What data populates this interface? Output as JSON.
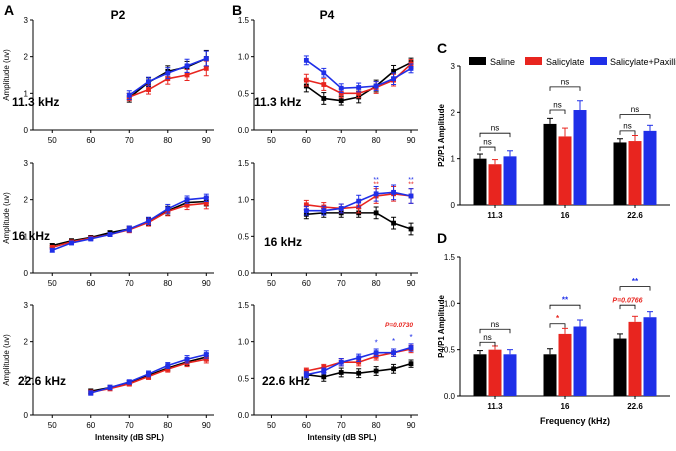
{
  "colors": {
    "saline": "#000000",
    "salicylate": "#e8251f",
    "paxilline": "#1f2fe8",
    "axis": "#000000"
  },
  "legend": {
    "saline": "Saline",
    "salicylate": "Salicylate",
    "paxilline": "Salicylate+Paxilline"
  },
  "panel_letters": {
    "A": "A",
    "B": "B",
    "C": "C",
    "D": "D"
  },
  "column_titles": {
    "p2": "P2",
    "p4": "P4"
  },
  "shared": {
    "xlabel": "Intensity (dB SPL)",
    "ylabel": "Amplitude (uv)",
    "xticks": [
      50,
      60,
      70,
      80,
      90
    ],
    "yticks": [
      0,
      1,
      2,
      3
    ]
  },
  "chart_data": [
    {
      "id": "A1",
      "type": "line",
      "title": "11.3 kHz",
      "ylim": [
        0,
        3
      ],
      "xlim": [
        45,
        92
      ],
      "x": [
        70,
        75,
        80,
        85,
        90
      ],
      "series": [
        {
          "name": "Saline",
          "values": [
            0.88,
            1.3,
            1.6,
            1.72,
            1.95
          ],
          "err": [
            0.12,
            0.12,
            0.15,
            0.15,
            0.22
          ]
        },
        {
          "name": "Salicylate",
          "values": [
            0.9,
            1.1,
            1.4,
            1.5,
            1.68
          ],
          "err": [
            0.1,
            0.12,
            0.15,
            0.15,
            0.2
          ]
        },
        {
          "name": "Salicylate+Paxilline",
          "values": [
            0.95,
            1.32,
            1.55,
            1.75,
            1.95
          ],
          "err": [
            0.12,
            0.12,
            0.15,
            0.18,
            0.2
          ]
        }
      ]
    },
    {
      "id": "B1",
      "type": "line",
      "title": "11.3 kHz",
      "ylim": [
        0,
        1.5
      ],
      "xlim": [
        45,
        92
      ],
      "yticks": [
        "0.0",
        "0.5",
        "1.0",
        "1.5"
      ],
      "x": [
        60,
        65,
        70,
        75,
        80,
        85,
        90
      ],
      "series": [
        {
          "name": "Saline",
          "values": [
            0.6,
            0.43,
            0.4,
            0.45,
            0.6,
            0.8,
            0.92
          ],
          "err": [
            0.08,
            0.08,
            0.06,
            0.08,
            0.08,
            0.08,
            0.06
          ]
        },
        {
          "name": "Salicylate",
          "values": [
            0.68,
            0.62,
            0.5,
            0.5,
            0.58,
            0.68,
            0.9
          ],
          "err": [
            0.08,
            0.08,
            0.06,
            0.06,
            0.08,
            0.08,
            0.06
          ]
        },
        {
          "name": "Salicylate+Paxilline",
          "values": [
            0.95,
            0.78,
            0.57,
            0.58,
            0.6,
            0.7,
            0.84
          ],
          "err": [
            0.06,
            0.06,
            0.06,
            0.06,
            0.06,
            0.08,
            0.06
          ]
        }
      ]
    },
    {
      "id": "A2",
      "type": "line",
      "title": "16 kHz",
      "ylim": [
        0,
        3
      ],
      "xlim": [
        45,
        92
      ],
      "x": [
        50,
        55,
        60,
        65,
        70,
        75,
        80,
        85,
        90
      ],
      "series": [
        {
          "name": "Saline",
          "values": [
            0.75,
            0.88,
            0.97,
            1.1,
            1.2,
            1.4,
            1.7,
            1.92,
            1.95
          ],
          "err": [
            0.05,
            0.05,
            0.05,
            0.05,
            0.08,
            0.1,
            0.12,
            0.12,
            0.12
          ]
        },
        {
          "name": "Salicylate",
          "values": [
            0.7,
            0.85,
            0.95,
            1.05,
            1.18,
            1.38,
            1.68,
            1.85,
            1.9
          ],
          "err": [
            0.05,
            0.05,
            0.05,
            0.05,
            0.08,
            0.1,
            0.12,
            0.12,
            0.15
          ]
        },
        {
          "name": "Salicylate+Paxilline",
          "values": [
            0.62,
            0.82,
            0.93,
            1.05,
            1.2,
            1.42,
            1.75,
            2.0,
            2.05
          ],
          "err": [
            0.05,
            0.05,
            0.05,
            0.05,
            0.08,
            0.1,
            0.12,
            0.1,
            0.1
          ]
        }
      ]
    },
    {
      "id": "B2",
      "type": "line",
      "title": "16 kHz",
      "ylim": [
        0,
        1.5
      ],
      "xlim": [
        45,
        92
      ],
      "yticks": [
        "0.0",
        "0.5",
        "1.0",
        "1.5"
      ],
      "x": [
        60,
        65,
        70,
        75,
        80,
        85,
        90
      ],
      "series": [
        {
          "name": "Saline",
          "values": [
            0.8,
            0.82,
            0.82,
            0.82,
            0.82,
            0.68,
            0.6
          ],
          "err": [
            0.06,
            0.06,
            0.06,
            0.06,
            0.08,
            0.08,
            0.08
          ]
        },
        {
          "name": "Salicylate",
          "values": [
            0.93,
            0.9,
            0.88,
            0.9,
            1.05,
            1.08,
            1.05
          ],
          "err": [
            0.06,
            0.06,
            0.06,
            0.08,
            0.1,
            0.1,
            0.1
          ]
        },
        {
          "name": "Salicylate+Paxilline",
          "values": [
            0.85,
            0.85,
            0.88,
            0.98,
            1.08,
            1.1,
            1.05
          ],
          "err": [
            0.06,
            0.06,
            0.06,
            0.08,
            0.1,
            0.1,
            0.1
          ]
        }
      ],
      "annotations": [
        "**",
        "**",
        "**",
        "**"
      ]
    },
    {
      "id": "A3",
      "type": "line",
      "title": "22.6 kHz",
      "ylim": [
        0,
        3
      ],
      "xlim": [
        45,
        92
      ],
      "x": [
        60,
        65,
        70,
        75,
        80,
        85,
        90
      ],
      "series": [
        {
          "name": "Saline",
          "values": [
            0.65,
            0.75,
            0.88,
            1.08,
            1.28,
            1.45,
            1.58
          ],
          "err": [
            0.06,
            0.06,
            0.06,
            0.08,
            0.08,
            0.1,
            0.1
          ]
        },
        {
          "name": "Salicylate",
          "values": [
            0.62,
            0.72,
            0.85,
            1.05,
            1.25,
            1.42,
            1.52
          ],
          "err": [
            0.06,
            0.06,
            0.06,
            0.08,
            0.08,
            0.1,
            0.1
          ]
        },
        {
          "name": "Salicylate+Paxilline",
          "values": [
            0.6,
            0.75,
            0.9,
            1.12,
            1.35,
            1.52,
            1.65
          ],
          "err": [
            0.06,
            0.06,
            0.06,
            0.08,
            0.08,
            0.1,
            0.1
          ]
        }
      ]
    },
    {
      "id": "B3",
      "type": "line",
      "title": "22.6 kHz",
      "ylim": [
        0,
        1.5
      ],
      "xlim": [
        45,
        92
      ],
      "yticks": [
        "0.0",
        "0.5",
        "1.0",
        "1.5"
      ],
      "x": [
        60,
        65,
        70,
        75,
        80,
        85,
        90
      ],
      "series": [
        {
          "name": "Saline",
          "values": [
            0.55,
            0.52,
            0.58,
            0.57,
            0.6,
            0.63,
            0.7
          ],
          "err": [
            0.06,
            0.06,
            0.06,
            0.06,
            0.06,
            0.06,
            0.05
          ]
        },
        {
          "name": "Salicylate",
          "values": [
            0.6,
            0.65,
            0.72,
            0.72,
            0.8,
            0.85,
            0.9
          ],
          "err": [
            0.04,
            0.04,
            0.05,
            0.05,
            0.05,
            0.05,
            0.05
          ]
        },
        {
          "name": "Salicylate+Paxilline",
          "values": [
            0.55,
            0.6,
            0.72,
            0.78,
            0.85,
            0.85,
            0.92
          ],
          "err": [
            0.04,
            0.04,
            0.05,
            0.05,
            0.05,
            0.05,
            0.05
          ]
        }
      ],
      "annotations": [
        "*",
        "*",
        "*",
        "P=0.0730"
      ]
    },
    {
      "id": "C",
      "type": "bar",
      "categories": [
        "11.3",
        "16",
        "22.6"
      ],
      "ylabel": "P2/P1 Amplitude",
      "ylim": [
        0,
        3
      ],
      "yticks": [
        0,
        1,
        2,
        3
      ],
      "series": [
        {
          "name": "Saline",
          "values": [
            1.0,
            1.75,
            1.35
          ],
          "err": [
            0.1,
            0.12,
            0.08
          ]
        },
        {
          "name": "Salicylate",
          "values": [
            0.88,
            1.48,
            1.38
          ],
          "err": [
            0.1,
            0.18,
            0.12
          ]
        },
        {
          "name": "Salicylate+Paxilline",
          "values": [
            1.05,
            2.05,
            1.6
          ],
          "err": [
            0.12,
            0.2,
            0.12
          ]
        }
      ],
      "annotations": [
        "ns",
        "ns",
        "ns",
        "ns",
        "ns",
        "ns"
      ]
    },
    {
      "id": "D",
      "type": "bar",
      "categories": [
        "11.3",
        "16",
        "22.6"
      ],
      "xlabel": "Frequency (kHz)",
      "ylabel": "P4/P1 Amplitude",
      "ylim": [
        0,
        1.5
      ],
      "yticks": [
        "0.0",
        "0.5",
        "1.0",
        "1.5"
      ],
      "series": [
        {
          "name": "Saline",
          "values": [
            0.45,
            0.45,
            0.62
          ],
          "err": [
            0.04,
            0.06,
            0.05
          ]
        },
        {
          "name": "Salicylate",
          "values": [
            0.5,
            0.67,
            0.8
          ],
          "err": [
            0.04,
            0.06,
            0.06
          ]
        },
        {
          "name": "Salicylate+Paxilline",
          "values": [
            0.45,
            0.75,
            0.85
          ],
          "err": [
            0.05,
            0.07,
            0.06
          ]
        }
      ],
      "annotations": [
        "ns",
        "ns",
        "*",
        "**",
        "P=0.0766",
        "**"
      ]
    }
  ]
}
